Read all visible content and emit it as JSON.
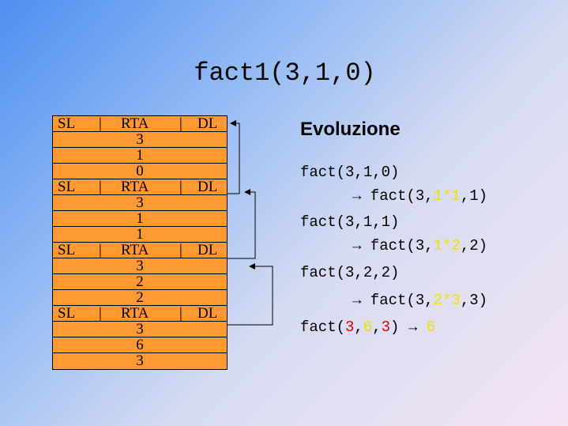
{
  "title": "fact1(3,1,0)",
  "stack": {
    "frames": [
      {
        "sl": "SL",
        "sep1": "|",
        "rta": "RTA",
        "sep2": "|",
        "dl": "DL",
        "values": [
          "3",
          "1",
          "0"
        ]
      },
      {
        "sl": "SL",
        "sep1": "|",
        "rta": "RTA",
        "sep2": "|",
        "dl": "DL",
        "values": [
          "3",
          "1",
          "1"
        ]
      },
      {
        "sl": "SL",
        "sep1": "|",
        "rta": "RTA",
        "sep2": "|",
        "dl": "DL",
        "values": [
          "3",
          "2",
          "2"
        ]
      },
      {
        "sl": "SL",
        "sep1": "|",
        "rta": "RTA",
        "sep2": "|",
        "dl": "DL",
        "values": [
          "3",
          "6",
          "3"
        ]
      }
    ]
  },
  "evolution": {
    "heading": "Evoluzione",
    "lines": {
      "l1": "fact(3,1,0)",
      "l2_pre": "→ fact(3,",
      "l2_hl": "1*1",
      "l2_post": ",1)",
      "l3": "fact(3,1,1)",
      "l4_pre": "→ fact(3,",
      "l4_hl": "1*2",
      "l4_post": ",2)",
      "l5": "fact(3,2,2)",
      "l6_pre": "→ fact(3,",
      "l6_hl": "2*3",
      "l6_post": ",3)",
      "l7_a": "fact(",
      "l7_b": "3",
      "l7_c": ",",
      "l7_d": "6",
      "l7_e": ",",
      "l7_f": "3",
      "l7_g": ") → ",
      "l7_h": "6"
    }
  },
  "colors": {
    "stack_fill": "#ff9933",
    "highlight_yellow": "#f0e000",
    "highlight_red": "#e00000"
  }
}
